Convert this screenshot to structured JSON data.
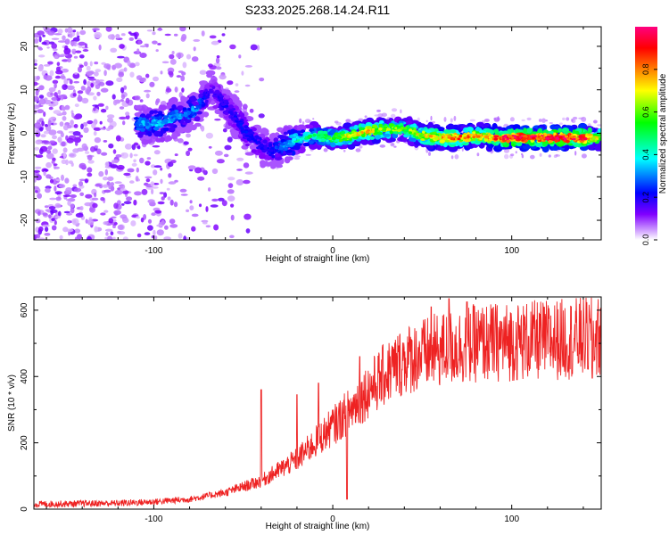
{
  "page_title": "S233.2025.268.14.24.R11",
  "chart_data": [
    {
      "type": "heatmap",
      "xlabel": "Height of straight line (km)",
      "ylabel": "Frequency (Hz)",
      "xlim": [
        -167,
        150
      ],
      "ylim": [
        -24.5,
        24.5
      ],
      "xticks": [
        -100,
        0,
        100
      ],
      "yticks": [
        -20,
        -10,
        0,
        10,
        20
      ],
      "colorbar": {
        "label": "Normalized spectral amplitude",
        "range": [
          0,
          1
        ],
        "ticks": [
          "0.0",
          "0.2",
          "0.4",
          "0.6",
          "0.8"
        ],
        "colormap": [
          "#ffffff",
          "#c080ff",
          "#8000ff",
          "#0000ff",
          "#00ffff",
          "#00ff00",
          "#ffff00",
          "#ff8000",
          "#ff0000",
          "#ff0080"
        ]
      },
      "ridge": {
        "x": [
          -110,
          -95,
          -85,
          -75,
          -68,
          -62,
          -55,
          -48,
          -40,
          -33,
          -28,
          -20,
          -10,
          0,
          10,
          20,
          30,
          40,
          50,
          60,
          70,
          80,
          90,
          100,
          110,
          120,
          130,
          140,
          150
        ],
        "y": [
          2,
          2.5,
          4,
          6,
          10,
          7,
          4,
          0,
          -3,
          -4,
          -3,
          -1.5,
          -0.5,
          -1,
          -0.5,
          0.5,
          1,
          1,
          -0.5,
          -1,
          -1,
          -0.5,
          -1,
          -1,
          -1,
          -1,
          -1,
          -1,
          -1
        ],
        "amplitude": [
          0.3,
          0.35,
          0.3,
          0.3,
          0.15,
          0.2,
          0.2,
          0.22,
          0.2,
          0.22,
          0.3,
          0.4,
          0.5,
          0.55,
          0.7,
          0.72,
          0.62,
          0.58,
          0.7,
          0.75,
          0.8,
          0.72,
          0.85,
          0.9,
          0.92,
          0.92,
          0.92,
          0.9,
          0.6
        ]
      }
    },
    {
      "type": "line",
      "xlabel": "Height of straight line (km)",
      "ylabel": "SNR (10 * v/v)",
      "xlim": [
        -167,
        150
      ],
      "ylim": [
        0,
        640
      ],
      "xticks": [
        -100,
        0,
        100
      ],
      "yticks": [
        0,
        200,
        400,
        600
      ],
      "color": "#ee2222",
      "trend": {
        "x": [
          -167,
          -120,
          -100,
          -80,
          -60,
          -40,
          -20,
          0,
          10,
          20,
          30,
          40,
          60,
          80,
          100,
          120,
          150
        ],
        "y": [
          15,
          18,
          22,
          30,
          50,
          85,
          150,
          250,
          300,
          360,
          410,
          450,
          480,
          500,
          505,
          510,
          520
        ]
      },
      "spikes": [
        {
          "x": -40,
          "y": 360
        },
        {
          "x": -20,
          "y": 345
        },
        {
          "x": -8,
          "y": 380
        },
        {
          "x": 8,
          "y": 30
        },
        {
          "x": 15,
          "y": 460
        },
        {
          "x": 55,
          "y": 610
        },
        {
          "x": 65,
          "y": 635
        },
        {
          "x": 75,
          "y": 625
        },
        {
          "x": 145,
          "y": 630
        },
        {
          "x": 145,
          "y": 395
        }
      ]
    }
  ]
}
